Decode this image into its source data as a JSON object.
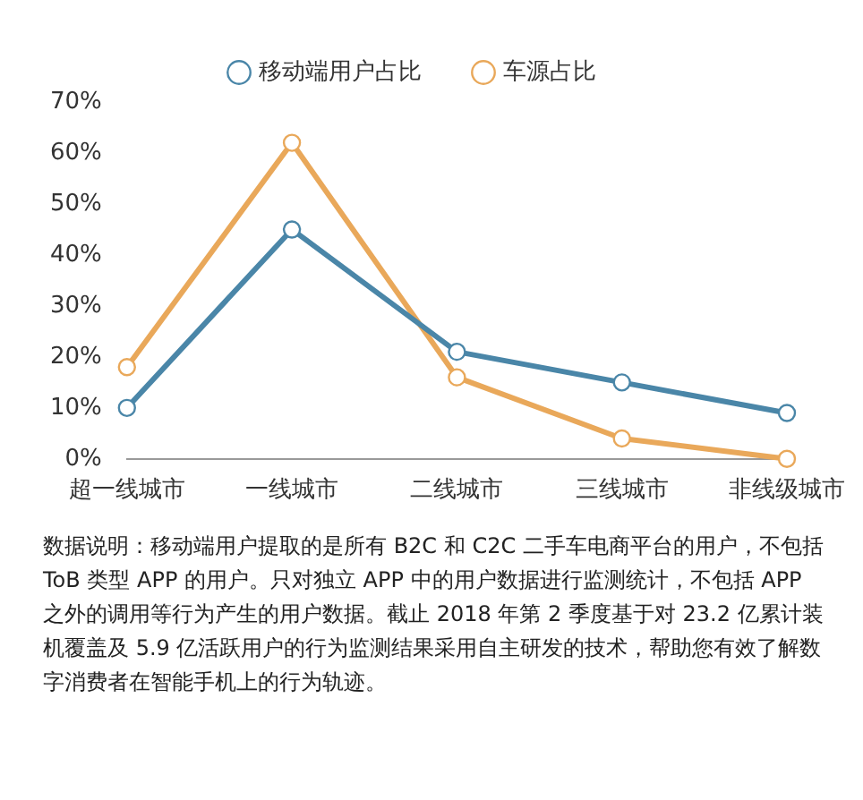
{
  "chart_data": {
    "type": "line",
    "categories": [
      "超一线城市",
      "一线城市",
      "二线城市",
      "三线城市",
      "非线级城市"
    ],
    "series": [
      {
        "name": "移动端用户占比",
        "color": "#4a86a8",
        "values": [
          10,
          45,
          21,
          15,
          9
        ]
      },
      {
        "name": "车源占比",
        "color": "#e9a85a",
        "values": [
          18,
          62,
          16,
          4,
          0
        ]
      }
    ],
    "ylim": [
      0,
      70
    ],
    "yticks": [
      {
        "value": 0,
        "label": "0%"
      },
      {
        "value": 10,
        "label": "10%"
      },
      {
        "value": 20,
        "label": "20%"
      },
      {
        "value": 30,
        "label": "30%"
      },
      {
        "value": 40,
        "label": "40%"
      },
      {
        "value": 50,
        "label": "50%"
      },
      {
        "value": 60,
        "label": "60%"
      },
      {
        "value": 70,
        "label": "70%"
      }
    ],
    "grid": false,
    "legend": "top",
    "marker": "circle",
    "line_style": "solid",
    "annotations": [
      "数据说明：移动端用户提取的是所有 B2C 和 C2C 二手车电商平台的用户，不包括 ToB 类型 APP 的用户。只对独立 APP 中的用户数据进行监测统计，不包括 APP 之外的调用等行为产生的用户数据。截止 2018 年第 2 季度基于对 23.2 亿累计装机覆盖及 5.9 亿活跃用户的行为监测结果采用自主研发的技术，帮助您有效了解数字消费者在智能手机上的行为轨迹。"
    ]
  }
}
